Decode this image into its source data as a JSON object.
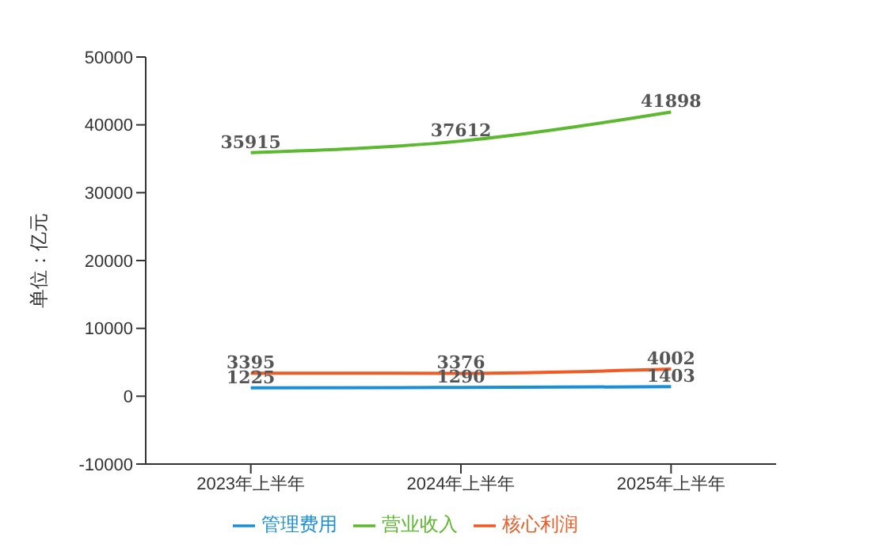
{
  "chart_data": {
    "type": "line",
    "ylabel": "单位：亿元",
    "categories": [
      "2023年上半年",
      "2024年上半年",
      "2025年上半年"
    ],
    "series": [
      {
        "name": "管理费用",
        "color": "#1a8fd8",
        "values": [
          1225,
          1290,
          1403
        ]
      },
      {
        "name": "营业收入",
        "color": "#5cb82e",
        "values": [
          35915,
          37612,
          41898
        ]
      },
      {
        "name": "核心利润",
        "color": "#f05a24",
        "values": [
          3395,
          3376,
          4002
        ]
      }
    ],
    "ylim": [
      -10000,
      50000
    ],
    "yticks": [
      -10000,
      0,
      10000,
      20000,
      30000,
      40000,
      50000
    ],
    "grid": false,
    "legend": "bottom",
    "data_labels": true,
    "marker": "none",
    "line_style": "solid"
  }
}
